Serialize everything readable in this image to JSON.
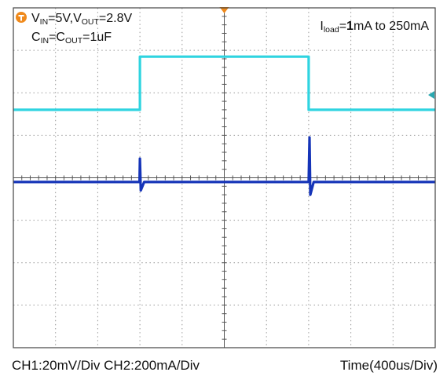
{
  "chart_data": {
    "type": "line",
    "annotations": {
      "line1": [
        {
          "text": "V",
          "style": "normal"
        },
        {
          "text": "IN",
          "style": "sub"
        },
        {
          "text": "=5V,V",
          "style": "normal"
        },
        {
          "text": "OUT",
          "style": "sub"
        },
        {
          "text": "=2.8V",
          "style": "normal"
        }
      ],
      "line2": [
        {
          "text": "C",
          "style": "normal"
        },
        {
          "text": "IN",
          "style": "sub"
        },
        {
          "text": "=C",
          "style": "normal"
        },
        {
          "text": "OUT",
          "style": "sub"
        },
        {
          "text": "=1uF",
          "style": "normal"
        }
      ],
      "load": [
        {
          "text": "I",
          "style": "normal"
        },
        {
          "text": "load",
          "style": "sub"
        },
        {
          "text": "=",
          "style": "normal"
        },
        {
          "text": "1",
          "style": "bold"
        },
        {
          "text": "mA to 250mA",
          "style": "normal"
        }
      ]
    },
    "grid": {
      "on": true,
      "divisions_x": 10,
      "divisions_y": 8
    },
    "x_unit_per_div": "400us",
    "series": [
      {
        "name": "CH2",
        "label": "CH2:200mA/Div",
        "color": "#2fd4e0",
        "x": [
          0,
          3,
          3,
          7,
          7,
          10
        ],
        "y": [
          1.6,
          1.6,
          2.85,
          2.85,
          1.6,
          1.6
        ]
      },
      {
        "name": "CH1",
        "label": "CH1:20mV/Div",
        "color": "#1534b8",
        "x": [
          0,
          2.99,
          3.0,
          3.02,
          3.1,
          7.0,
          7.02,
          7.04,
          7.12,
          10
        ],
        "y": [
          -0.1,
          -0.1,
          0.45,
          -0.3,
          -0.1,
          -0.1,
          0.95,
          -0.4,
          -0.1,
          -0.1
        ]
      }
    ],
    "markers": {
      "trigger_color": "#f08a1c",
      "channel_marker_color": "#2aa8b0"
    }
  },
  "footer": {
    "channels": "CH1:20mV/Div  CH2:200mA/Div",
    "time": "Time(400us/Div)"
  }
}
